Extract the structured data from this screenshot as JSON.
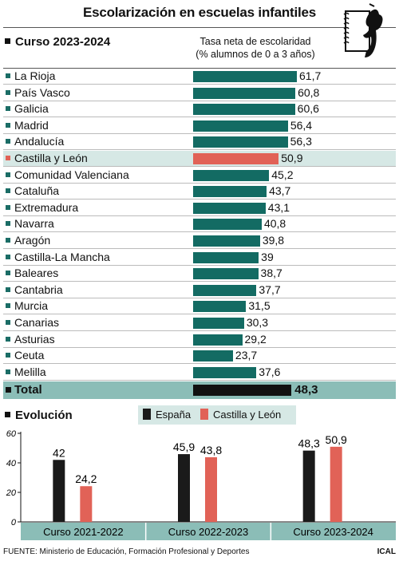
{
  "title": "Escolarización en escuelas infantiles",
  "section_current": "Curso 2023-2024",
  "subtitle_line1": "Tasa neta de escolaridad",
  "subtitle_line2": "(% alumnos de 0 a 3 años)",
  "section_evolution": "Evolución",
  "footer": "FUENTE: Ministerio de Educación, Formación Profesional y Deportes",
  "credit": "ICAL",
  "colors": {
    "teal": "#136b63",
    "highlight_bar": "#e16257",
    "highlight_row": "#d6e8e5",
    "total_row": "#8bbdb7",
    "spain": "#1a1a1a"
  },
  "chart_data": [
    {
      "type": "bar",
      "orientation": "horizontal",
      "categories": [
        "La Rioja",
        "País Vasco",
        "Galicia",
        "Madrid",
        "Andalucía",
        "Castilla y León",
        "Comunidad Valenciana",
        "Cataluña",
        "Extremadura",
        "Navarra",
        "Aragón",
        "Castilla-La Mancha",
        "Baleares",
        "Cantabria",
        "Murcia",
        "Canarias",
        "Asturias",
        "Ceuta",
        "Melilla"
      ],
      "value_labels": [
        "61,7",
        "60,8",
        "60,6",
        "56,4",
        "56,3",
        "50,9",
        "45,2",
        "43,7",
        "43,1",
        "40,8",
        "39,8",
        "39",
        "38,7",
        "37,7",
        "31,5",
        "30,3",
        "29,2",
        "23,7",
        "37,6"
      ],
      "values": [
        61.7,
        60.8,
        60.6,
        56.4,
        56.3,
        50.9,
        45.2,
        43.7,
        43.1,
        40.8,
        39.8,
        39,
        38.7,
        37.7,
        31.5,
        30.3,
        29.2,
        23.7,
        37.6
      ],
      "highlight": "Castilla y León",
      "total": {
        "label": "Total",
        "value": 48.3,
        "value_label": "48,3"
      },
      "xlim": [
        0,
        70
      ]
    },
    {
      "type": "bar",
      "categories": [
        "Curso 2021-2022",
        "Curso 2022-2023",
        "Curso 2023-2024"
      ],
      "series": [
        {
          "name": "España",
          "values": [
            42,
            45.9,
            48.3
          ],
          "value_labels": [
            "42",
            "45,9",
            "48,3"
          ],
          "color": "#1a1a1a"
        },
        {
          "name": "Castilla y León",
          "values": [
            24.2,
            43.8,
            50.9
          ],
          "value_labels": [
            "24,2",
            "43,8",
            "50,9"
          ],
          "color": "#e16257"
        }
      ],
      "yticks": [
        "0",
        "20",
        "40",
        "60"
      ],
      "ylim": [
        0,
        60
      ],
      "legend": "top-center",
      "grid": false
    }
  ]
}
